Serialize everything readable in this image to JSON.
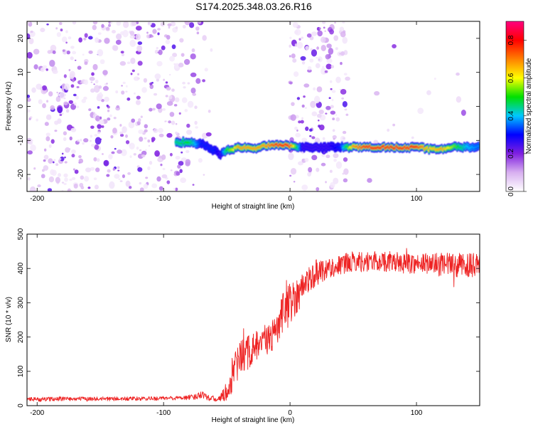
{
  "title": "S174.2025.348.03.26.R16",
  "chart_data": [
    {
      "type": "heatmap",
      "name": "spectrogram",
      "xlabel": "Height of straight line (km)",
      "ylabel": "Frequency (Hz)",
      "xlim": [
        -208,
        150
      ],
      "ylim": [
        -25,
        25
      ],
      "xticks": [
        -200,
        -100,
        0,
        100
      ],
      "yticks": [
        -20,
        -10,
        0,
        10,
        20
      ],
      "colorbar": {
        "label": "Normalized spectral amplitude",
        "range": [
          0.0,
          0.9
        ],
        "ticks": [
          0.0,
          0.2,
          0.4,
          0.6,
          0.8
        ],
        "colors": [
          "#ffffff",
          "#d8b0f0",
          "#8020e0",
          "#0000ff",
          "#00c8ff",
          "#00e000",
          "#ffff00",
          "#ff8000",
          "#ff0000",
          "#ff0080"
        ]
      },
      "noise_segments": [
        {
          "x_start": -208,
          "x_end": -88,
          "density": "high"
        },
        {
          "x_start": -88,
          "x_end": -75,
          "density": "medium"
        },
        {
          "x_start": -75,
          "x_end": -62,
          "density": "low"
        },
        {
          "x_start": 0,
          "x_end": 46,
          "density": "high"
        },
        {
          "x_start": 46,
          "x_end": 150,
          "density": "very low"
        }
      ],
      "signal_track": {
        "x": [
          -90,
          -80,
          -70,
          -60,
          -55,
          -50,
          -40,
          -30,
          -20,
          -10,
          0,
          10,
          20,
          30,
          40,
          50,
          60,
          80,
          100,
          110,
          120,
          130,
          140,
          150
        ],
        "freq": [
          -10.5,
          -10.5,
          -11,
          -13,
          -14,
          -13,
          -12,
          -12.5,
          -11.5,
          -11.5,
          -11.5,
          -12,
          -12,
          -12,
          -12,
          -12,
          -12,
          -12,
          -12,
          -12.5,
          -12.5,
          -12,
          -12,
          -12
        ],
        "amplitude": [
          0.5,
          0.55,
          0.35,
          0.35,
          0.3,
          0.55,
          0.75,
          0.75,
          0.75,
          0.85,
          0.85,
          0.3,
          0.3,
          0.3,
          0.35,
          0.75,
          0.85,
          0.85,
          0.85,
          0.7,
          0.75,
          0.6,
          0.45,
          0.4
        ]
      }
    },
    {
      "type": "line",
      "name": "snr",
      "xlabel": "Height of straight line (km)",
      "ylabel": "SNR (10 * v/v)",
      "xlim": [
        -208,
        150
      ],
      "ylim": [
        0,
        500
      ],
      "xticks": [
        -200,
        -100,
        0,
        100
      ],
      "yticks": [
        0,
        100,
        200,
        300,
        400,
        500
      ],
      "series": [
        {
          "name": "SNR",
          "color": "#ee2222",
          "x": [
            -208,
            -180,
            -150,
            -120,
            -90,
            -75,
            -70,
            -65,
            -60,
            -55,
            -50,
            -45,
            -40,
            -35,
            -30,
            -25,
            -20,
            -15,
            -10,
            -5,
            0,
            5,
            10,
            15,
            20,
            25,
            30,
            40,
            50,
            60,
            70,
            80,
            90,
            100,
            110,
            120,
            130,
            140,
            150
          ],
          "y": [
            18,
            20,
            20,
            20,
            22,
            25,
            35,
            25,
            20,
            22,
            40,
            100,
            130,
            150,
            165,
            175,
            190,
            200,
            220,
            270,
            300,
            320,
            345,
            370,
            385,
            395,
            400,
            410,
            420,
            420,
            420,
            420,
            415,
            415,
            415,
            410,
            410,
            410,
            410
          ],
          "noise_amplitude": [
            6,
            6,
            6,
            6,
            6,
            8,
            12,
            10,
            8,
            10,
            30,
            60,
            60,
            55,
            50,
            45,
            45,
            45,
            55,
            70,
            60,
            55,
            45,
            40,
            40,
            35,
            30,
            30,
            30,
            30,
            30,
            30,
            30,
            30,
            30,
            35,
            35,
            35,
            35
          ]
        }
      ]
    }
  ]
}
